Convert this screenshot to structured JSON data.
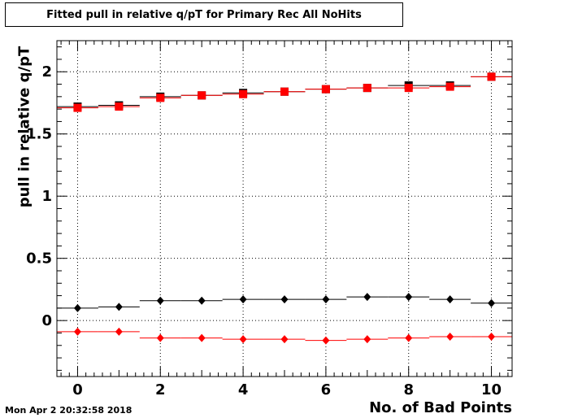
{
  "title": "Fitted pull in relative q/pT for Primary Rec All NoHits",
  "timestamp": "Mon Apr  2 20:32:58 2018",
  "chart_data": {
    "type": "scatter",
    "title": "Fitted pull in relative q/pT for Primary Rec All NoHits",
    "xlabel": "No. of Bad Points",
    "ylabel": "pull in relative q/pT",
    "xlim": [
      -0.5,
      10.5
    ],
    "ylim": [
      -0.45,
      2.25
    ],
    "grid": true,
    "x_ticks": [
      "0",
      "2",
      "4",
      "6",
      "8",
      "10"
    ],
    "y_ticks": [
      "0",
      "0.5",
      "1",
      "1.5",
      "2"
    ],
    "series": [
      {
        "marker": "square",
        "color": "#000000",
        "x": [
          0,
          1,
          2,
          3,
          4,
          5,
          6,
          7,
          8,
          9,
          10
        ],
        "values": [
          1.72,
          1.73,
          1.8,
          1.81,
          1.83,
          1.84,
          1.86,
          1.87,
          1.89,
          1.89,
          1.96
        ]
      },
      {
        "marker": "square",
        "color": "#ff0000",
        "x": [
          0,
          1,
          2,
          3,
          4,
          5,
          6,
          7,
          8,
          9,
          10
        ],
        "values": [
          1.71,
          1.72,
          1.79,
          1.81,
          1.82,
          1.84,
          1.86,
          1.87,
          1.87,
          1.88,
          1.96
        ]
      },
      {
        "marker": "diamond",
        "color": "#000000",
        "x": [
          0,
          1,
          2,
          3,
          4,
          5,
          6,
          7,
          8,
          9,
          10
        ],
        "values": [
          0.1,
          0.11,
          0.16,
          0.16,
          0.17,
          0.17,
          0.17,
          0.19,
          0.19,
          0.17,
          0.14
        ]
      },
      {
        "marker": "diamond",
        "color": "#ff0000",
        "x": [
          0,
          1,
          2,
          3,
          4,
          5,
          6,
          7,
          8,
          9,
          10
        ],
        "values": [
          -0.09,
          -0.09,
          -0.14,
          -0.14,
          -0.15,
          -0.15,
          -0.16,
          -0.15,
          -0.14,
          -0.13,
          -0.13
        ]
      }
    ]
  }
}
